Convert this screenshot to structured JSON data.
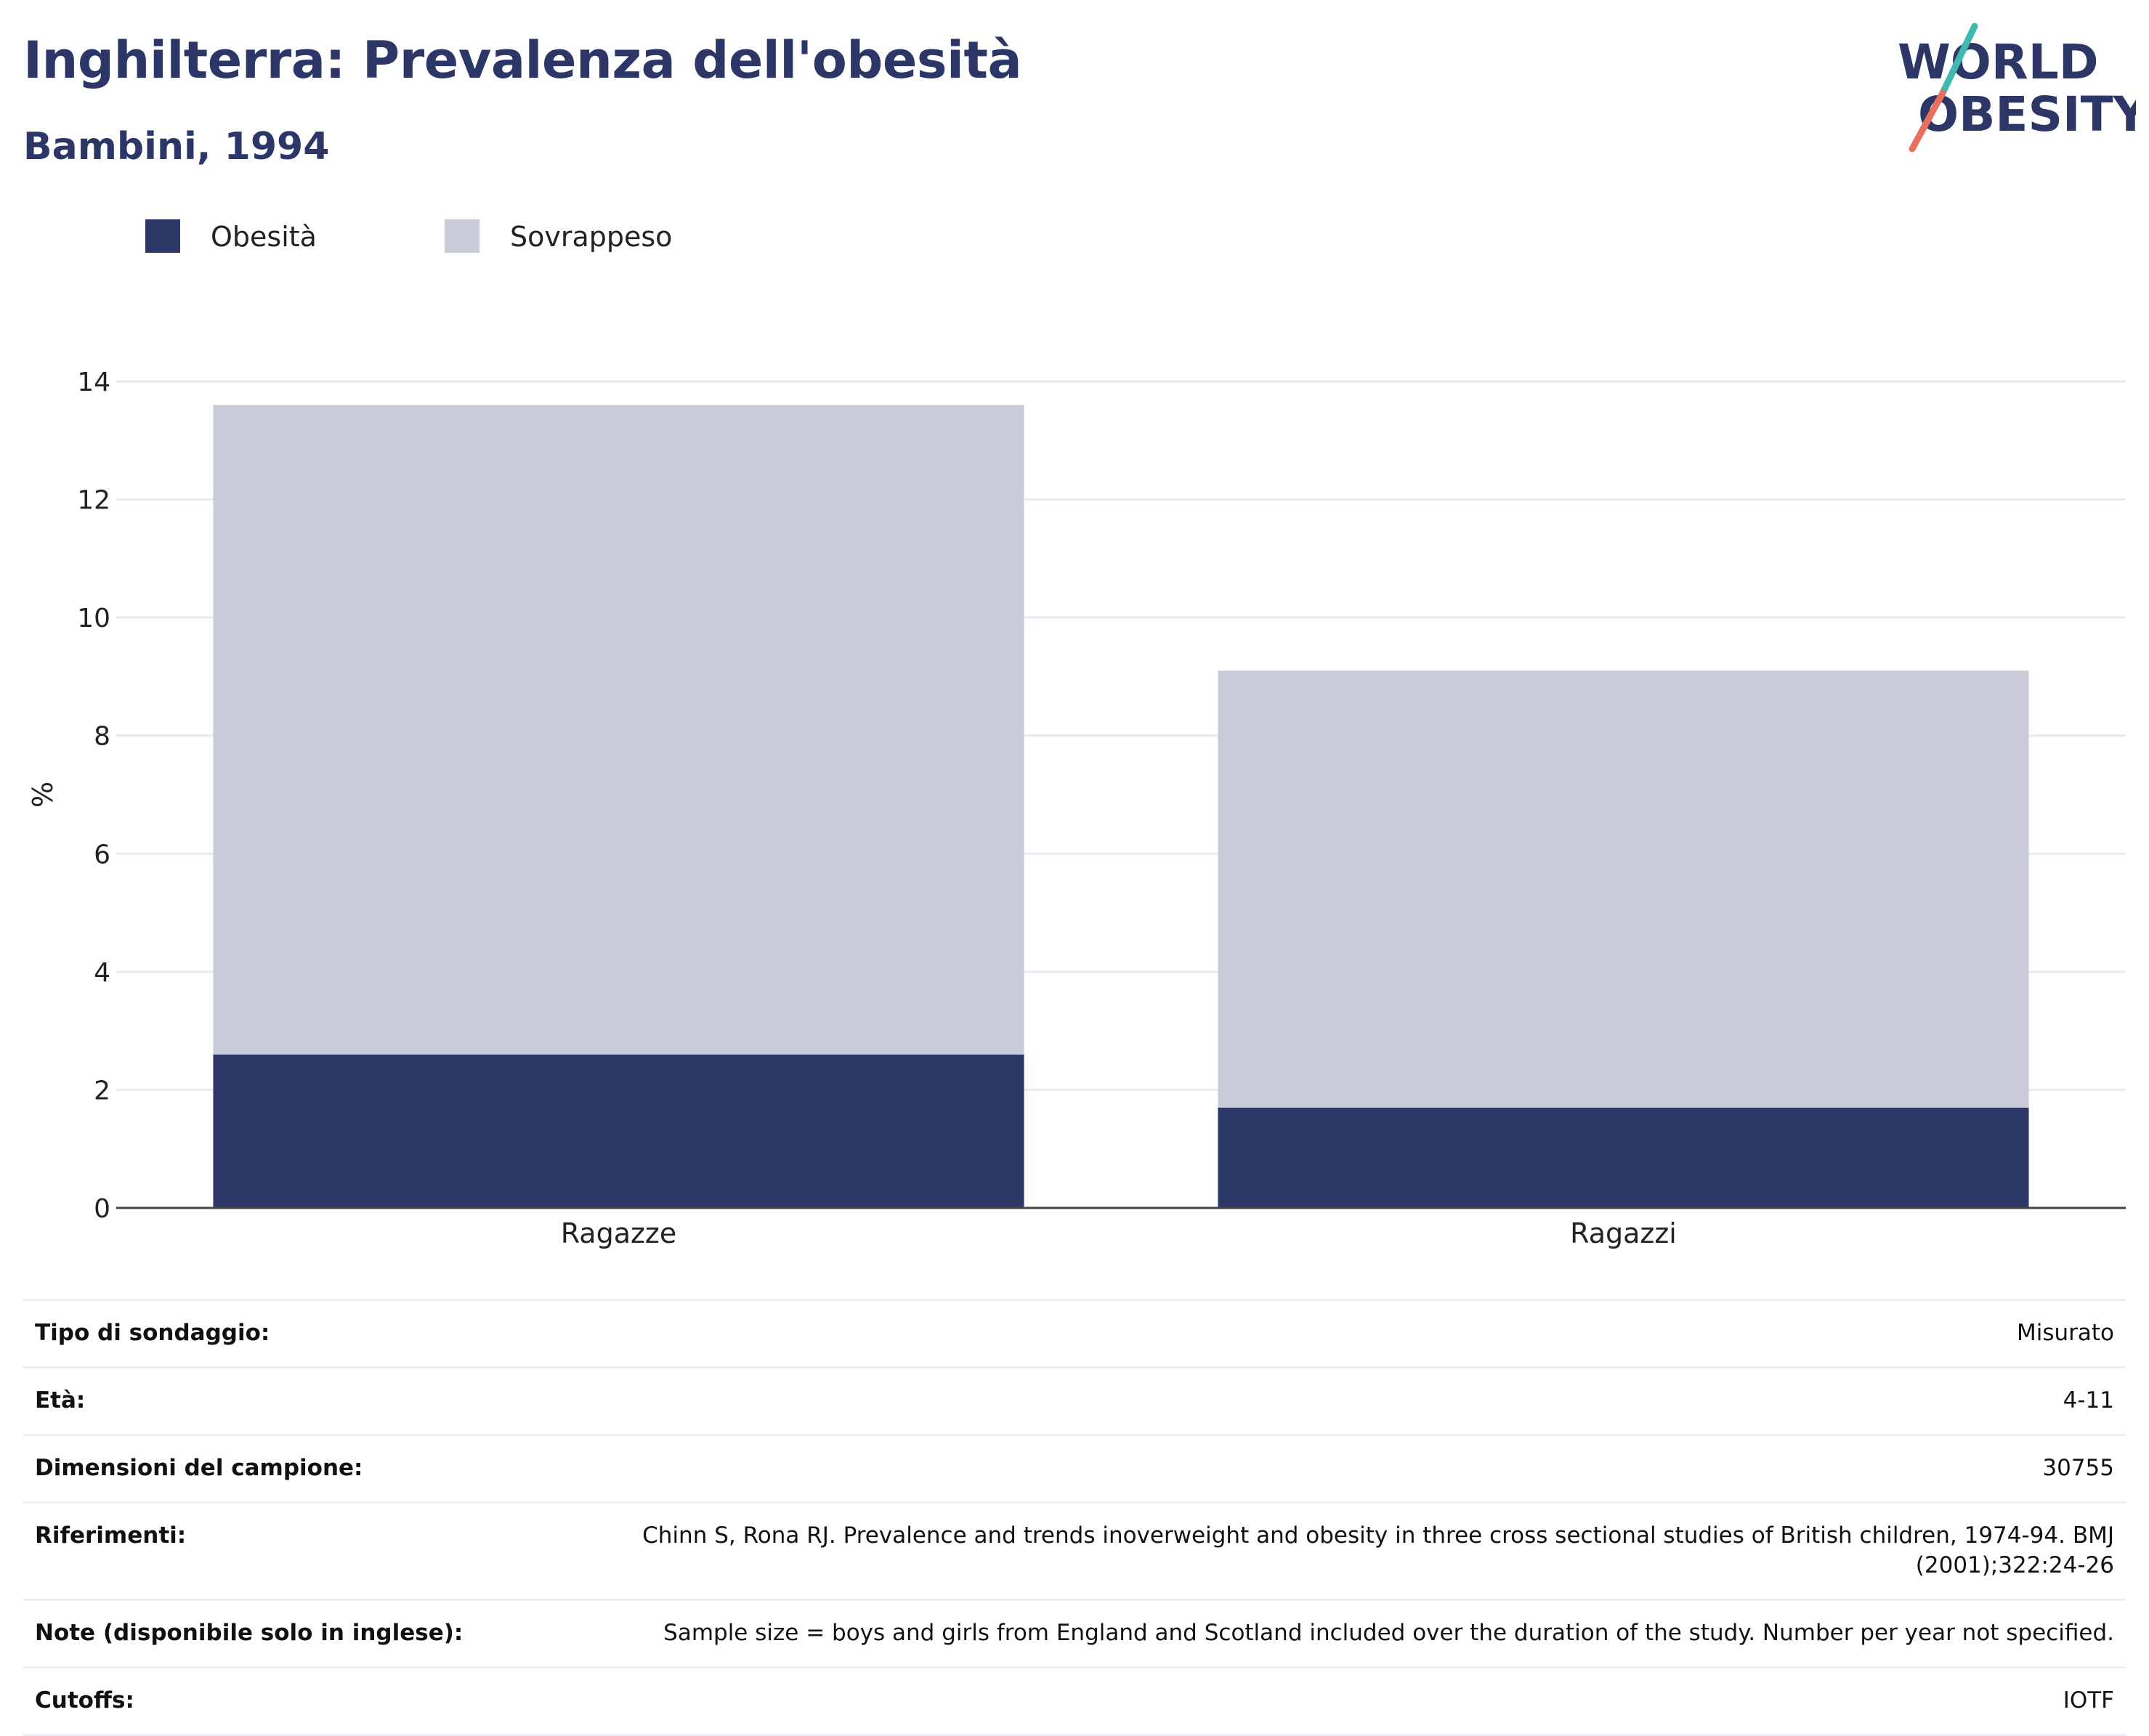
{
  "header": {
    "title": "Inghilterra: Prevalenza dell'obesità",
    "subtitle": "Bambini, 1994"
  },
  "logo": {
    "line1": "WORLD",
    "line2": "OBESITY",
    "colors": {
      "text": "#2c3767",
      "slash_top": "#3fb9b0",
      "slash_bottom": "#e8705f"
    }
  },
  "legend": [
    {
      "label": "Obesità",
      "color": "#2c3767"
    },
    {
      "label": "Sovrappeso",
      "color": "#c9ccd8"
    }
  ],
  "chart_data": {
    "type": "bar",
    "stacked": true,
    "categories": [
      "Ragazze",
      "Ragazzi"
    ],
    "series": [
      {
        "name": "Obesità",
        "color": "#2c3767",
        "values": [
          2.6,
          1.7
        ]
      },
      {
        "name": "Sovrappeso",
        "color": "#c9ccd8",
        "values": [
          11.0,
          7.4
        ]
      }
    ],
    "ylabel": "%",
    "ylim": [
      0,
      14
    ],
    "yticks": [
      0,
      2,
      4,
      6,
      8,
      10,
      12,
      14
    ],
    "grid": true,
    "legend_position": "top-left"
  },
  "info": [
    {
      "label": "Tipo di sondaggio:",
      "value": "Misurato"
    },
    {
      "label": "Età:",
      "value": "4-11"
    },
    {
      "label": "Dimensioni del campione:",
      "value": "30755"
    },
    {
      "label": "Riferimenti:",
      "value": "Chinn S, Rona RJ. Prevalence and trends inoverweight and obesity in three cross sectional studies of British children, 1974-94. BMJ (2001);322:24-26"
    },
    {
      "label": "Note (disponibile solo in inglese):",
      "value": "Sample size = boys and girls from England and Scotland included over the duration of the study. Number per year not specified."
    },
    {
      "label": "Cutoffs:",
      "value": "IOTF"
    }
  ]
}
